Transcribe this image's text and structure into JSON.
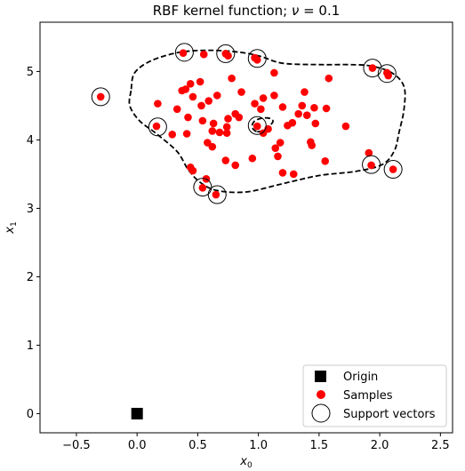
{
  "chart_data": {
    "type": "scatter",
    "title_prefix": "RBF kernel function; ",
    "title_symbol": "ν",
    "title_suffix": " = 0.1",
    "xlabel_var": "x",
    "xlabel_sub": "0",
    "ylabel_var": "x",
    "ylabel_sub": "1",
    "xlim": [
      -0.8,
      2.6
    ],
    "ylim": [
      -0.28,
      5.72
    ],
    "xticks": [
      -0.5,
      0.0,
      0.5,
      1.0,
      1.5,
      2.0,
      2.5
    ],
    "xtick_labels": [
      "−0.5",
      "0.0",
      "0.5",
      "1.0",
      "1.5",
      "2.0",
      "2.5"
    ],
    "yticks": [
      0,
      1,
      2,
      3,
      4,
      5
    ],
    "ytick_labels": [
      "0",
      "1",
      "2",
      "3",
      "4",
      "5"
    ],
    "grid": false,
    "legend_position": "lower-right",
    "legend": [
      {
        "label": "Origin",
        "marker": "square",
        "color": "#000000"
      },
      {
        "label": "Samples",
        "marker": "dot",
        "color": "#ff0000"
      },
      {
        "label": "Support vectors",
        "marker": "open-circle",
        "color": "#000000"
      }
    ],
    "series": [
      {
        "name": "Origin",
        "marker": "square",
        "color": "#000000",
        "points": [
          [
            0.0,
            0.0
          ]
        ]
      },
      {
        "name": "Samples",
        "marker": "dot",
        "color": "#ff0000",
        "points": [
          [
            -0.3,
            4.63
          ],
          [
            0.38,
            5.27
          ],
          [
            0.55,
            5.25
          ],
          [
            0.73,
            5.26
          ],
          [
            0.75,
            5.23
          ],
          [
            0.97,
            5.2
          ],
          [
            0.99,
            5.17
          ],
          [
            1.13,
            4.98
          ],
          [
            1.94,
            5.05
          ],
          [
            2.06,
            4.98
          ],
          [
            2.07,
            4.94
          ],
          [
            1.58,
            4.9
          ],
          [
            0.78,
            4.9
          ],
          [
            0.52,
            4.85
          ],
          [
            0.44,
            4.82
          ],
          [
            0.4,
            4.74
          ],
          [
            0.37,
            4.72
          ],
          [
            0.86,
            4.7
          ],
          [
            1.38,
            4.7
          ],
          [
            0.66,
            4.65
          ],
          [
            1.13,
            4.65
          ],
          [
            1.04,
            4.61
          ],
          [
            0.46,
            4.63
          ],
          [
            0.59,
            4.57
          ],
          [
            0.17,
            4.53
          ],
          [
            0.97,
            4.53
          ],
          [
            0.53,
            4.5
          ],
          [
            1.02,
            4.45
          ],
          [
            1.2,
            4.48
          ],
          [
            1.36,
            4.5
          ],
          [
            1.46,
            4.47
          ],
          [
            1.56,
            4.46
          ],
          [
            0.33,
            4.45
          ],
          [
            0.81,
            4.38
          ],
          [
            0.75,
            4.31
          ],
          [
            0.84,
            4.33
          ],
          [
            0.42,
            4.33
          ],
          [
            1.33,
            4.38
          ],
          [
            1.4,
            4.36
          ],
          [
            0.54,
            4.28
          ],
          [
            1.28,
            4.25
          ],
          [
            1.47,
            4.24
          ],
          [
            1.72,
            4.2
          ],
          [
            0.63,
            4.24
          ],
          [
            0.16,
            4.2
          ],
          [
            0.74,
            4.19
          ],
          [
            0.99,
            4.2
          ],
          [
            1.08,
            4.16
          ],
          [
            1.24,
            4.21
          ],
          [
            0.62,
            4.13
          ],
          [
            0.68,
            4.11
          ],
          [
            0.74,
            4.1
          ],
          [
            0.41,
            4.09
          ],
          [
            0.29,
            4.08
          ],
          [
            1.04,
            4.1
          ],
          [
            1.18,
            3.96
          ],
          [
            1.43,
            3.97
          ],
          [
            1.44,
            3.92
          ],
          [
            0.58,
            3.96
          ],
          [
            0.62,
            3.9
          ],
          [
            1.14,
            3.88
          ],
          [
            0.73,
            3.7
          ],
          [
            0.95,
            3.73
          ],
          [
            1.16,
            3.76
          ],
          [
            1.55,
            3.69
          ],
          [
            0.81,
            3.63
          ],
          [
            1.91,
            3.81
          ],
          [
            1.93,
            3.63
          ],
          [
            0.44,
            3.6
          ],
          [
            0.46,
            3.55
          ],
          [
            1.2,
            3.52
          ],
          [
            1.29,
            3.5
          ],
          [
            2.11,
            3.57
          ],
          [
            0.57,
            3.43
          ],
          [
            0.54,
            3.3
          ],
          [
            0.65,
            3.2
          ]
        ]
      },
      {
        "name": "Support vectors",
        "marker": "open-circle",
        "color": "#000000",
        "points": [
          [
            -0.3,
            4.63
          ],
          [
            0.39,
            5.28
          ],
          [
            0.73,
            5.26
          ],
          [
            0.99,
            5.19
          ],
          [
            1.94,
            5.05
          ],
          [
            2.06,
            4.97
          ],
          [
            0.17,
            4.19
          ],
          [
            0.99,
            4.21
          ],
          [
            1.93,
            3.64
          ],
          [
            2.11,
            3.57
          ],
          [
            0.54,
            3.31
          ],
          [
            0.66,
            3.2
          ]
        ]
      }
    ],
    "decision_boundary": {
      "style": "dashed",
      "color": "#000000",
      "outer": [
        [
          -0.05,
          4.72
        ],
        [
          -0.06,
          4.5
        ],
        [
          0.02,
          4.28
        ],
        [
          0.16,
          4.09
        ],
        [
          0.33,
          3.83
        ],
        [
          0.42,
          3.57
        ],
        [
          0.52,
          3.38
        ],
        [
          0.66,
          3.26
        ],
        [
          0.9,
          3.24
        ],
        [
          1.2,
          3.36
        ],
        [
          1.5,
          3.48
        ],
        [
          1.8,
          3.54
        ],
        [
          2.02,
          3.64
        ],
        [
          2.12,
          3.84
        ],
        [
          2.16,
          4.12
        ],
        [
          2.2,
          4.45
        ],
        [
          2.2,
          4.78
        ],
        [
          2.1,
          4.98
        ],
        [
          1.93,
          5.08
        ],
        [
          1.75,
          5.1
        ],
        [
          1.5,
          5.1
        ],
        [
          1.2,
          5.12
        ],
        [
          1.02,
          5.22
        ],
        [
          0.85,
          5.28
        ],
        [
          0.6,
          5.31
        ],
        [
          0.35,
          5.28
        ],
        [
          0.12,
          5.16
        ],
        [
          -0.02,
          4.98
        ]
      ],
      "inner": [
        [
          0.99,
          4.12
        ],
        [
          1.05,
          4.15
        ],
        [
          1.1,
          4.22
        ],
        [
          1.12,
          4.28
        ],
        [
          1.08,
          4.32
        ],
        [
          1.01,
          4.31
        ],
        [
          0.96,
          4.26
        ],
        [
          0.95,
          4.18
        ]
      ]
    }
  }
}
